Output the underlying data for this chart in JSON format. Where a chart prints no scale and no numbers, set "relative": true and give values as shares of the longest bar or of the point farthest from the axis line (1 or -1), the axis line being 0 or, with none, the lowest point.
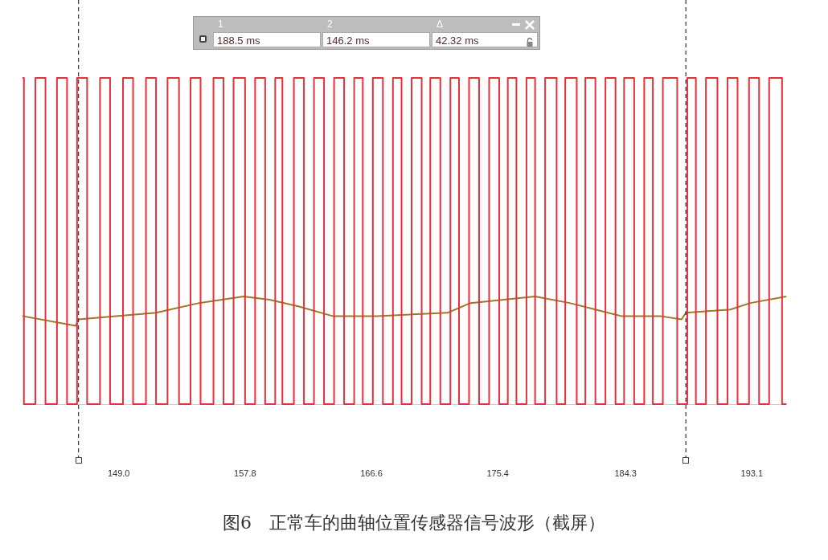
{
  "chart_data": {
    "type": "line",
    "title": "图6　正常车的曲轴位置传感器信号波形（截屏）",
    "relative": true,
    "marker": "none",
    "grid": false,
    "legend": false,
    "tick_labels": "x",
    "xlim": [
      142.3,
      195.5
    ],
    "xticks": [
      {
        "value": 149,
        "label": "149.0"
      },
      157.8,
      166.6,
      175.4,
      184.3,
      193.1
    ],
    "ref_lines": [
      {
        "axis": "x",
        "value": 188.5,
        "color": "#333333",
        "line_style": "dashed"
      },
      {
        "axis": "x",
        "value": 146.2,
        "color": "#333333",
        "line_style": "dashed"
      }
    ],
    "annotations": [
      "1",
      "2",
      "Δ",
      "188.5 ms",
      "146.2 ms",
      "42.32 ms"
    ],
    "series": [
      {
        "type": "step",
        "color": "#e8303a",
        "x": [
          142.3,
          142.4,
          143.2,
          143.9,
          144.7,
          145.4,
          146.1,
          146.8,
          147.7,
          148.4,
          149.3,
          150.0,
          150.9,
          151.6,
          152.4,
          153.2,
          154.0,
          154.7,
          155.6,
          156.3,
          157.0,
          157.8,
          158.5,
          159.2,
          159.9,
          160.4,
          161.2,
          161.9,
          162.6,
          163.3,
          164.0,
          164.7,
          165.4,
          166.0,
          166.7,
          167.4,
          168.1,
          168.7,
          169.4,
          170.1,
          170.7,
          171.4,
          172.1,
          172.7,
          173.4,
          174.1,
          174.8,
          175.5,
          176.1,
          176.7,
          177.4,
          178.0,
          178.7,
          179.5,
          180.1,
          180.9,
          181.5,
          182.2,
          182.9,
          183.6,
          184.2,
          184.9,
          185.6,
          186.2,
          186.9,
          187.9,
          188.6,
          189.2,
          189.9,
          190.7,
          191.4,
          192.1,
          192.9,
          193.6,
          194.3,
          195.2,
          195.5
        ],
        "values": [
          1,
          0,
          1,
          0,
          1,
          0,
          1,
          0,
          1,
          0,
          1,
          0,
          1,
          0,
          1,
          0,
          1,
          0,
          1,
          0,
          1,
          0,
          1,
          0,
          1,
          0,
          1,
          0,
          1,
          0,
          1,
          0,
          1,
          0,
          1,
          0,
          1,
          0,
          1,
          0,
          1,
          0,
          1,
          0,
          1,
          0,
          1,
          0,
          1,
          0,
          1,
          0,
          1,
          0,
          1,
          0,
          1,
          0,
          1,
          0,
          1,
          0,
          1,
          0,
          1,
          0,
          1,
          0,
          1,
          0,
          1,
          0,
          1,
          0,
          1,
          0,
          0
        ]
      },
      {
        "type": "line",
        "color": "#a0762a",
        "x": [
          142.3,
          146.0,
          146.2,
          151.6,
          154.6,
          157.7,
          159.5,
          161.5,
          163.9,
          167.0,
          171.9,
          173.5,
          178.0,
          180.4,
          182.2,
          184.0,
          186.7,
          188.2,
          188.5,
          191.6,
          193.0,
          195.5
        ],
        "values": [
          0.27,
          0.24,
          0.26,
          0.28,
          0.31,
          0.33,
          0.32,
          0.3,
          0.27,
          0.27,
          0.28,
          0.31,
          0.33,
          0.31,
          0.29,
          0.27,
          0.27,
          0.26,
          0.28,
          0.29,
          0.31,
          0.33
        ]
      }
    ]
  }
}
